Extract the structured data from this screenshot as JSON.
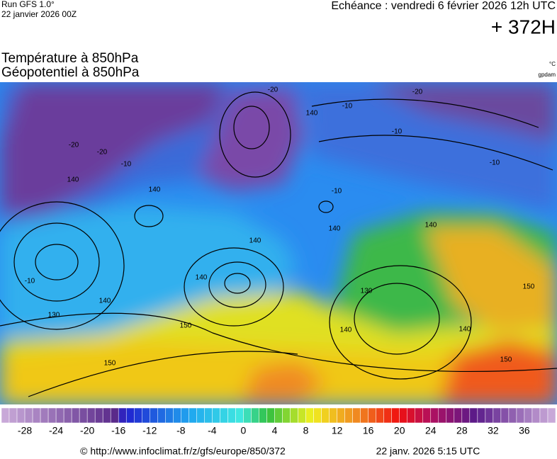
{
  "header": {
    "run": "Run GFS 1.0°",
    "run_date": "22 janvier 2026 00Z",
    "valid": "Echéance : vendredi 6 février 2026 12h UTC",
    "lead": "+ 372H"
  },
  "titles": {
    "field1": "Température à 850hPa",
    "field2": "Géopotentiel à 850hPa",
    "unit1": "°C",
    "unit2": "gpdam"
  },
  "map": {
    "contour_labels": [
      140,
      130,
      140,
      150,
      150,
      140,
      140,
      140,
      140,
      130,
      140,
      140,
      140,
      150,
      150,
      140,
      -20,
      -20,
      -10,
      -20,
      -20,
      -10,
      -10,
      -10,
      -10,
      -10
    ]
  },
  "colorbar": {
    "range": [
      -31,
      40
    ],
    "ticks": [
      -28,
      -24,
      -20,
      -16,
      -12,
      -8,
      -4,
      0,
      4,
      8,
      12,
      16,
      20,
      24,
      28,
      32,
      36
    ]
  },
  "footer": {
    "source": "© http://www.infoclimat.fr/z/gfs/europe/850/372",
    "generated": "22 janv. 2026  5:15 UTC"
  }
}
